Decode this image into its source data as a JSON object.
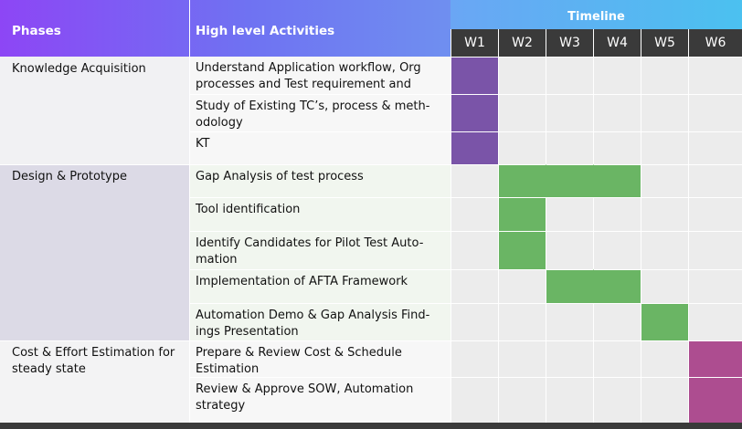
{
  "header": {
    "phases_label": "Phases",
    "activities_label": "High level Activities",
    "timeline_label": "Timeline",
    "weeks": [
      "W1",
      "W2",
      "W3",
      "W4",
      "W5",
      "W6"
    ]
  },
  "phases": [
    {
      "label": "Knowledge Acquisition",
      "color": "#7a54a8",
      "bg": "#f1f1f3"
    },
    {
      "label": "Design & Prototype",
      "color": "#6ab564",
      "bg": "#dcdae6"
    },
    {
      "label": "Cost & Effort Estimation for steady state",
      "color": "#ad4d90",
      "bg": "#f3f3f4"
    }
  ],
  "activities": [
    {
      "text": [
        "Understand Application workflow, Org",
        "processes and Test requirement and"
      ],
      "phase": 0,
      "weeks": [
        1
      ]
    },
    {
      "text": [
        "Study of Existing TC’s, process & meth-",
        "odology"
      ],
      "phase": 0,
      "weeks": [
        1
      ]
    },
    {
      "text": [
        "KT"
      ],
      "phase": 0,
      "weeks": [
        1
      ]
    },
    {
      "text": [
        "Gap Analysis of test process"
      ],
      "phase": 1,
      "weeks": [
        2,
        3,
        4
      ]
    },
    {
      "text": [
        "Tool identification"
      ],
      "phase": 1,
      "weeks": [
        2
      ]
    },
    {
      "text": [
        "Identify Candidates for Pilot Test Auto-",
        "mation"
      ],
      "phase": 1,
      "weeks": [
        2
      ]
    },
    {
      "text": [
        "Implementation of AFTA Framework"
      ],
      "phase": 1,
      "weeks": [
        3,
        4
      ]
    },
    {
      "text": [
        "Automation Demo & Gap Analysis Find-",
        "ings Presentation"
      ],
      "phase": 1,
      "weeks": [
        5
      ]
    },
    {
      "text": [
        "Prepare & Review Cost & Schedule",
        "Estimation"
      ],
      "phase": 2,
      "weeks": [
        6
      ]
    },
    {
      "text": [
        "Review & Approve SOW, Automation",
        "strategy"
      ],
      "phase": 2,
      "weeks": [
        6
      ]
    }
  ],
  "colors": {
    "activity_bg_alt": [
      "#f1f6ef",
      "#f7f7f7"
    ],
    "empty_cell": "#ececec",
    "footer": "#3a3a3a"
  }
}
